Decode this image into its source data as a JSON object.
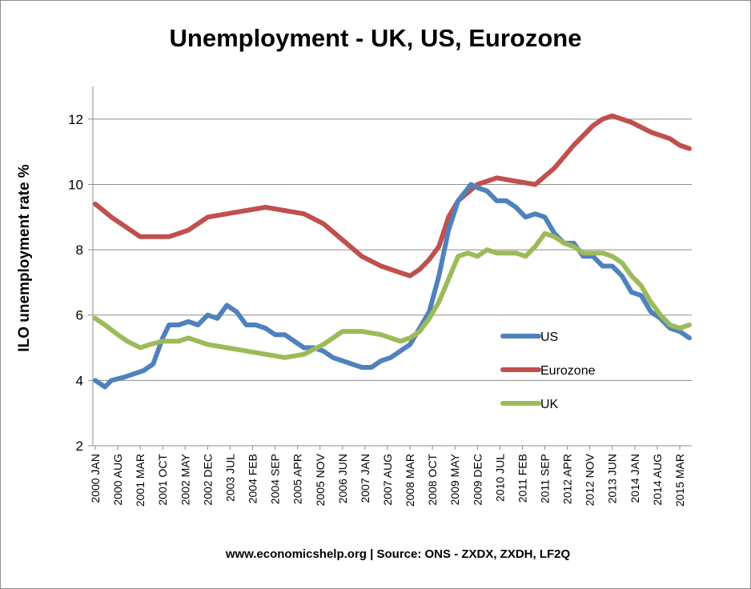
{
  "chart_data": {
    "type": "line",
    "title": "Unemployment - UK, US, Eurozone",
    "xlabel": "",
    "ylabel": "ILO unemployment rate %",
    "source": "www.economicshelp.org | Source: ONS - ZXDX, ZXDH, LF2Q",
    "ylim": [
      2,
      13
    ],
    "yticks": [
      2,
      4,
      6,
      8,
      10,
      12
    ],
    "x_range": [
      "2000-01",
      "2015-06"
    ],
    "xtick_labels": [
      "2000 JAN",
      "2000 AUG",
      "2001 MAR",
      "2001 OCT",
      "2002 MAY",
      "2002 DEC",
      "2003 JUL",
      "2004 FEB",
      "2004 SEP",
      "2005 APR",
      "2005 NOV",
      "2006 JUN",
      "2007 JAN",
      "2007 AUG",
      "2008 MAR",
      "2008 OCT",
      "2009 MAY",
      "2009 DEC",
      "2010 JUL",
      "2011 FEB",
      "2011 SEP",
      "2012 APR",
      "2012 NOV",
      "2013 JUN",
      "2014 JAN",
      "2014 AUG",
      "2015 MAR"
    ],
    "grid": "horizontal",
    "legend": "inside-lower-right",
    "series": [
      {
        "name": "US",
        "color": "#4f81bd",
        "points": [
          [
            "2000-01",
            4.0
          ],
          [
            "2000-04",
            3.8
          ],
          [
            "2000-06",
            4.0
          ],
          [
            "2000-10",
            4.1
          ],
          [
            "2001-01",
            4.2
          ],
          [
            "2001-04",
            4.3
          ],
          [
            "2001-07",
            4.5
          ],
          [
            "2001-10",
            5.3
          ],
          [
            "2001-12",
            5.7
          ],
          [
            "2002-03",
            5.7
          ],
          [
            "2002-06",
            5.8
          ],
          [
            "2002-09",
            5.7
          ],
          [
            "2002-12",
            6.0
          ],
          [
            "2003-03",
            5.9
          ],
          [
            "2003-06",
            6.3
          ],
          [
            "2003-09",
            6.1
          ],
          [
            "2003-12",
            5.7
          ],
          [
            "2004-03",
            5.7
          ],
          [
            "2004-06",
            5.6
          ],
          [
            "2004-09",
            5.4
          ],
          [
            "2004-12",
            5.4
          ],
          [
            "2005-03",
            5.2
          ],
          [
            "2005-06",
            5.0
          ],
          [
            "2005-09",
            5.0
          ],
          [
            "2005-12",
            4.9
          ],
          [
            "2006-03",
            4.7
          ],
          [
            "2006-06",
            4.6
          ],
          [
            "2006-09",
            4.5
          ],
          [
            "2006-12",
            4.4
          ],
          [
            "2007-03",
            4.4
          ],
          [
            "2007-06",
            4.6
          ],
          [
            "2007-09",
            4.7
          ],
          [
            "2007-12",
            4.9
          ],
          [
            "2008-03",
            5.1
          ],
          [
            "2008-06",
            5.6
          ],
          [
            "2008-09",
            6.1
          ],
          [
            "2008-12",
            7.2
          ],
          [
            "2009-03",
            8.6
          ],
          [
            "2009-06",
            9.5
          ],
          [
            "2009-10",
            10.0
          ],
          [
            "2009-12",
            9.9
          ],
          [
            "2010-03",
            9.8
          ],
          [
            "2010-06",
            9.5
          ],
          [
            "2010-09",
            9.5
          ],
          [
            "2010-12",
            9.3
          ],
          [
            "2011-03",
            9.0
          ],
          [
            "2011-06",
            9.1
          ],
          [
            "2011-09",
            9.0
          ],
          [
            "2011-12",
            8.5
          ],
          [
            "2012-03",
            8.2
          ],
          [
            "2012-06",
            8.2
          ],
          [
            "2012-09",
            7.8
          ],
          [
            "2012-12",
            7.8
          ],
          [
            "2013-03",
            7.5
          ],
          [
            "2013-06",
            7.5
          ],
          [
            "2013-09",
            7.2
          ],
          [
            "2013-12",
            6.7
          ],
          [
            "2014-03",
            6.6
          ],
          [
            "2014-06",
            6.1
          ],
          [
            "2014-09",
            5.9
          ],
          [
            "2014-12",
            5.6
          ],
          [
            "2015-03",
            5.5
          ],
          [
            "2015-06",
            5.3
          ]
        ]
      },
      {
        "name": "Eurozone",
        "color": "#c0504d",
        "points": [
          [
            "2000-01",
            9.4
          ],
          [
            "2000-06",
            9.0
          ],
          [
            "2000-12",
            8.6
          ],
          [
            "2001-03",
            8.4
          ],
          [
            "2001-06",
            8.4
          ],
          [
            "2001-12",
            8.4
          ],
          [
            "2002-06",
            8.6
          ],
          [
            "2002-12",
            9.0
          ],
          [
            "2003-06",
            9.1
          ],
          [
            "2003-12",
            9.2
          ],
          [
            "2004-06",
            9.3
          ],
          [
            "2004-12",
            9.2
          ],
          [
            "2005-06",
            9.1
          ],
          [
            "2005-12",
            8.8
          ],
          [
            "2006-06",
            8.3
          ],
          [
            "2006-12",
            7.8
          ],
          [
            "2007-06",
            7.5
          ],
          [
            "2007-12",
            7.3
          ],
          [
            "2008-03",
            7.2
          ],
          [
            "2008-06",
            7.4
          ],
          [
            "2008-09",
            7.7
          ],
          [
            "2008-12",
            8.1
          ],
          [
            "2009-03",
            9.0
          ],
          [
            "2009-06",
            9.5
          ],
          [
            "2009-12",
            10.0
          ],
          [
            "2010-06",
            10.2
          ],
          [
            "2010-12",
            10.1
          ],
          [
            "2011-06",
            10.0
          ],
          [
            "2011-12",
            10.5
          ],
          [
            "2012-06",
            11.2
          ],
          [
            "2012-12",
            11.8
          ],
          [
            "2013-03",
            12.0
          ],
          [
            "2013-06",
            12.1
          ],
          [
            "2013-12",
            11.9
          ],
          [
            "2014-06",
            11.6
          ],
          [
            "2014-12",
            11.4
          ],
          [
            "2015-03",
            11.2
          ],
          [
            "2015-06",
            11.1
          ]
        ]
      },
      {
        "name": "UK",
        "color": "#9bbb59",
        "points": [
          [
            "2000-01",
            5.9
          ],
          [
            "2000-04",
            5.7
          ],
          [
            "2000-08",
            5.4
          ],
          [
            "2000-11",
            5.2
          ],
          [
            "2001-03",
            5.0
          ],
          [
            "2001-06",
            5.1
          ],
          [
            "2001-10",
            5.2
          ],
          [
            "2002-03",
            5.2
          ],
          [
            "2002-06",
            5.3
          ],
          [
            "2002-12",
            5.1
          ],
          [
            "2003-06",
            5.0
          ],
          [
            "2003-12",
            4.9
          ],
          [
            "2004-06",
            4.8
          ],
          [
            "2004-12",
            4.7
          ],
          [
            "2005-06",
            4.8
          ],
          [
            "2005-12",
            5.1
          ],
          [
            "2006-06",
            5.5
          ],
          [
            "2006-12",
            5.5
          ],
          [
            "2007-06",
            5.4
          ],
          [
            "2007-12",
            5.2
          ],
          [
            "2008-03",
            5.3
          ],
          [
            "2008-06",
            5.5
          ],
          [
            "2008-09",
            5.9
          ],
          [
            "2008-12",
            6.4
          ],
          [
            "2009-03",
            7.1
          ],
          [
            "2009-06",
            7.8
          ],
          [
            "2009-09",
            7.9
          ],
          [
            "2009-12",
            7.8
          ],
          [
            "2010-03",
            8.0
          ],
          [
            "2010-06",
            7.9
          ],
          [
            "2010-09",
            7.9
          ],
          [
            "2010-12",
            7.9
          ],
          [
            "2011-03",
            7.8
          ],
          [
            "2011-06",
            8.1
          ],
          [
            "2011-09",
            8.5
          ],
          [
            "2011-12",
            8.4
          ],
          [
            "2012-03",
            8.2
          ],
          [
            "2012-06",
            8.1
          ],
          [
            "2012-09",
            7.9
          ],
          [
            "2012-12",
            7.9
          ],
          [
            "2013-03",
            7.9
          ],
          [
            "2013-06",
            7.8
          ],
          [
            "2013-09",
            7.6
          ],
          [
            "2013-12",
            7.2
          ],
          [
            "2014-03",
            6.9
          ],
          [
            "2014-06",
            6.4
          ],
          [
            "2014-09",
            6.0
          ],
          [
            "2014-12",
            5.7
          ],
          [
            "2015-03",
            5.6
          ],
          [
            "2015-06",
            5.7
          ]
        ]
      }
    ]
  }
}
